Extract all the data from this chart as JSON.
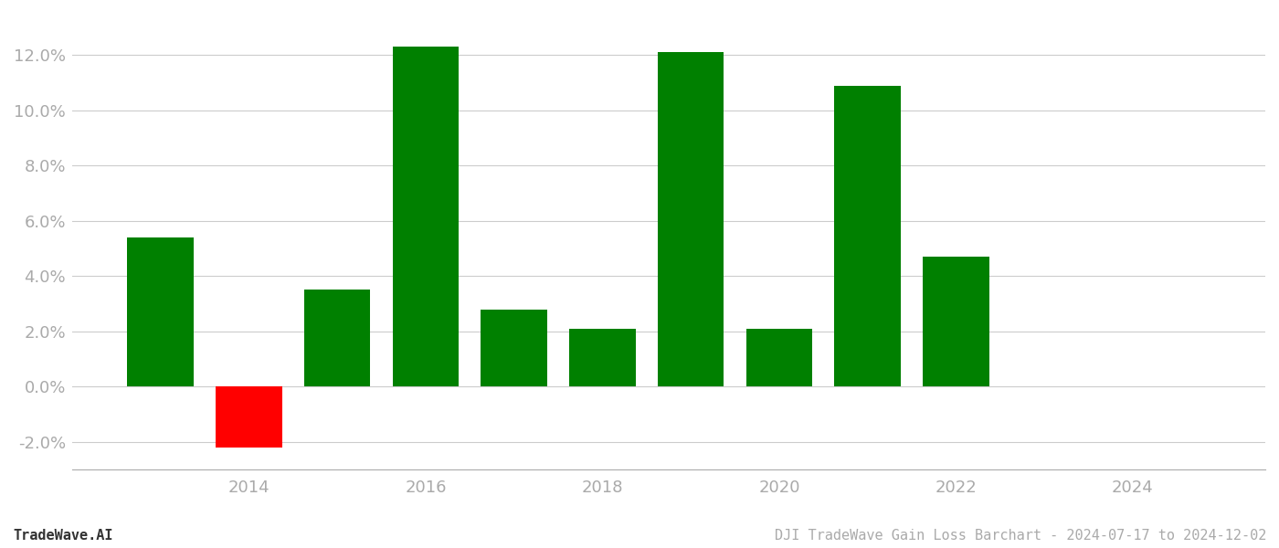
{
  "years": [
    2013,
    2014,
    2015,
    2016,
    2017,
    2018,
    2019,
    2020,
    2021,
    2022
  ],
  "values": [
    0.054,
    -0.022,
    0.035,
    0.123,
    0.028,
    0.021,
    0.121,
    0.021,
    0.109,
    0.047
  ],
  "colors": [
    "#008000",
    "#ff0000",
    "#008000",
    "#008000",
    "#008000",
    "#008000",
    "#008000",
    "#008000",
    "#008000",
    "#008000"
  ],
  "footer_left": "TradeWave.AI",
  "footer_right": "DJI TradeWave Gain Loss Barchart - 2024-07-17 to 2024-12-02",
  "ylim": [
    -0.03,
    0.135
  ],
  "yticks": [
    -0.02,
    0.0,
    0.02,
    0.04,
    0.06,
    0.08,
    0.1,
    0.12
  ],
  "xticks": [
    2014,
    2016,
    2018,
    2020,
    2022,
    2024
  ],
  "xlim": [
    2012.0,
    2025.5
  ],
  "bar_width": 0.75,
  "bg_color": "#ffffff",
  "grid_color": "#cccccc",
  "tick_color": "#aaaaaa",
  "footer_left_color": "#333333",
  "footer_right_color": "#aaaaaa",
  "footer_fontsize": 11,
  "tick_fontsize": 13
}
